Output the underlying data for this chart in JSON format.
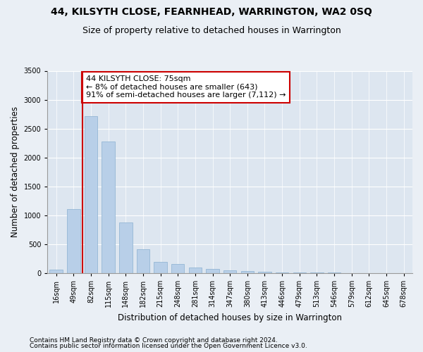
{
  "title": "44, KILSYTH CLOSE, FEARNHEAD, WARRINGTON, WA2 0SQ",
  "subtitle": "Size of property relative to detached houses in Warrington",
  "xlabel": "Distribution of detached houses by size in Warrington",
  "ylabel": "Number of detached properties",
  "categories": [
    "16sqm",
    "49sqm",
    "82sqm",
    "115sqm",
    "148sqm",
    "182sqm",
    "215sqm",
    "248sqm",
    "281sqm",
    "314sqm",
    "347sqm",
    "380sqm",
    "413sqm",
    "446sqm",
    "479sqm",
    "513sqm",
    "546sqm",
    "579sqm",
    "612sqm",
    "645sqm",
    "678sqm"
  ],
  "values": [
    55,
    1100,
    2720,
    2270,
    870,
    410,
    195,
    160,
    100,
    70,
    45,
    30,
    18,
    12,
    8,
    6,
    4,
    3,
    2,
    2,
    1
  ],
  "bar_color": "#b8cfe8",
  "bar_edge_color": "#8ab0d0",
  "vline_x": 1.5,
  "vline_color": "#cc0000",
  "annotation_text": "44 KILSYTH CLOSE: 75sqm\n← 8% of detached houses are smaller (643)\n91% of semi-detached houses are larger (7,112) →",
  "annotation_box_color": "#ffffff",
  "annotation_box_edge_color": "#cc0000",
  "ylim": [
    0,
    3500
  ],
  "yticks": [
    0,
    500,
    1000,
    1500,
    2000,
    2500,
    3000,
    3500
  ],
  "bg_color": "#eaeff5",
  "plot_bg_color": "#dde6f0",
  "footer1": "Contains HM Land Registry data © Crown copyright and database right 2024.",
  "footer2": "Contains public sector information licensed under the Open Government Licence v3.0.",
  "title_fontsize": 10,
  "subtitle_fontsize": 9,
  "xlabel_fontsize": 8.5,
  "ylabel_fontsize": 8.5,
  "tick_fontsize": 7,
  "annotation_fontsize": 8,
  "footer_fontsize": 6.5
}
